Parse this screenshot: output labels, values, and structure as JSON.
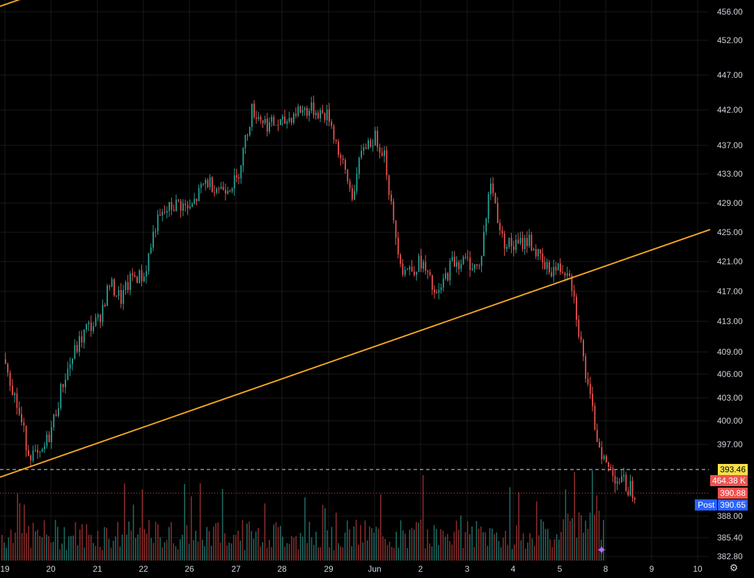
{
  "chart_data": {
    "type": "candlestick",
    "price_axis": {
      "ticks": [
        "456.00",
        "452.00",
        "447.00",
        "442.00",
        "437.00",
        "433.00",
        "429.00",
        "425.00",
        "421.00",
        "417.00",
        "413.00",
        "409.00",
        "406.00",
        "403.00",
        "400.00",
        "397.00",
        "388.00",
        "385.40",
        "382.80"
      ]
    },
    "time_axis": {
      "ticks": [
        "19",
        "20",
        "21",
        "22",
        "26",
        "27",
        "28",
        "29",
        "Jun",
        "2",
        "3",
        "4",
        "5",
        "8",
        "9",
        "10"
      ]
    },
    "price_labels": {
      "line_level": "393.46",
      "volume": "464.38 K",
      "last_price": "390.88",
      "post_label": "Post",
      "post_price": "390.65"
    },
    "colors": {
      "up": "#26a69a",
      "down": "#ef5350",
      "trendline": "#f5a623",
      "background": "#000000"
    },
    "trendlines": [
      {
        "from": [
          "19",
          393.5
        ],
        "to": [
          "8",
          425.0
        ]
      }
    ],
    "path": [
      [
        "19",
        408
      ],
      [
        "19",
        402
      ],
      [
        "19",
        396
      ],
      [
        "19",
        395
      ],
      [
        "20",
        399
      ],
      [
        "20",
        405
      ],
      [
        "20",
        409
      ],
      [
        "20",
        412
      ],
      [
        "21",
        413
      ],
      [
        "21",
        418
      ],
      [
        "21",
        416
      ],
      [
        "21",
        419
      ],
      [
        "22",
        419
      ],
      [
        "22",
        426
      ],
      [
        "22",
        428
      ],
      [
        "22",
        429
      ],
      [
        "26",
        428
      ],
      [
        "26",
        432
      ],
      [
        "26",
        431
      ],
      [
        "27",
        432
      ],
      [
        "27",
        442
      ],
      [
        "27",
        440
      ],
      [
        "28",
        440
      ],
      [
        "28",
        442
      ],
      [
        "28",
        442
      ],
      [
        "29",
        441
      ],
      [
        "29",
        435
      ],
      [
        "29",
        430
      ],
      [
        "29",
        437
      ],
      [
        "Jun",
        438
      ],
      [
        "Jun",
        436
      ],
      [
        "Jun",
        426
      ],
      [
        "Jun",
        420
      ],
      [
        "Jun",
        420
      ],
      [
        "2",
        421
      ],
      [
        "2",
        416
      ],
      [
        "2",
        421
      ],
      [
        "3",
        421
      ],
      [
        "3",
        420
      ],
      [
        "3",
        432
      ],
      [
        "3",
        424
      ],
      [
        "4",
        423
      ],
      [
        "4",
        424
      ],
      [
        "4",
        420
      ],
      [
        "5",
        420
      ],
      [
        "5",
        420
      ],
      [
        "5",
        412
      ],
      [
        "5",
        404
      ],
      [
        "5",
        398
      ],
      [
        "8",
        394
      ],
      [
        "8",
        392
      ],
      [
        "8",
        391
      ]
    ]
  },
  "ui": {
    "settings_icon": "settings-icon",
    "ai_icon": "ai-sparkle-icon"
  }
}
